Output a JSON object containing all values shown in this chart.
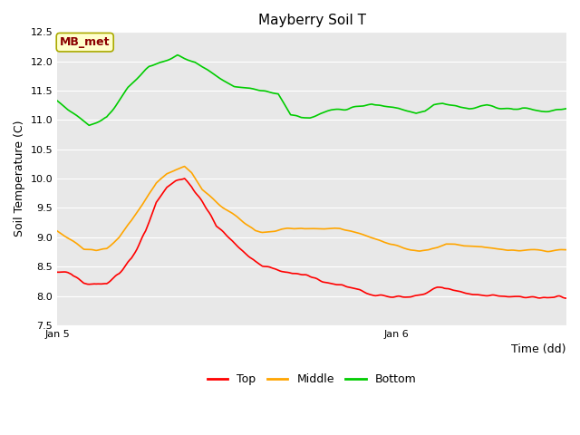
{
  "title": "Mayberry Soil T",
  "xlabel": "Time (dd)",
  "ylabel": "Soil Temperature (C)",
  "ylim": [
    7.5,
    12.5
  ],
  "xlim": [
    0,
    288
  ],
  "xtick_positions": [
    0,
    192,
    288
  ],
  "xticklabels": [
    "Jan 5",
    "Jan 6",
    ""
  ],
  "annotation_label": "MB_met",
  "annotation_color": "#8B0000",
  "annotation_bg": "#FFFFCC",
  "annotation_edge": "#AAAA00",
  "fig_bg_color": "#FFFFFF",
  "plot_bg_color": "#E8E8E8",
  "grid_color": "#FFFFFF",
  "top_color": "#FF0000",
  "middle_color": "#FFA500",
  "bottom_color": "#00CC00",
  "title_fontsize": 11,
  "axis_label_fontsize": 9,
  "tick_fontsize": 8
}
